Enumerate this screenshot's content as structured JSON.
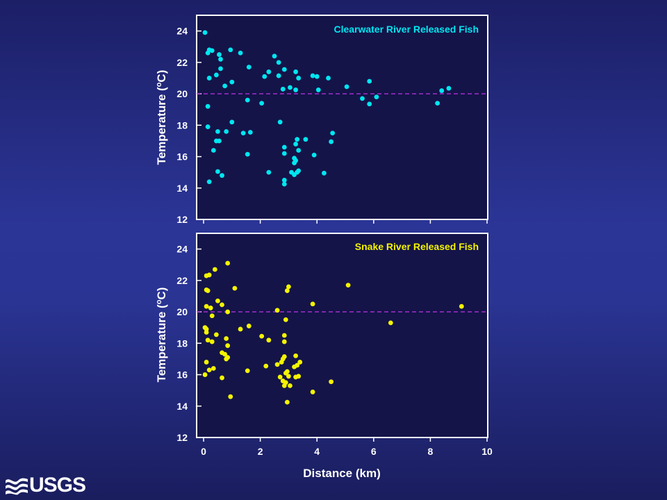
{
  "logo": {
    "text": "USGS",
    "icon": "usgs-wave-icon"
  },
  "colors": {
    "plot_bg": "#141449",
    "axis": "#ffffff",
    "threshold": "#b02fd8",
    "clearwater": "#00e6f0",
    "snake": "#f4f400"
  },
  "chart_data": [
    {
      "type": "scatter",
      "title": "Clearwater River Released Fish",
      "xlabel": "",
      "ylabel": "Temperature (",
      "ylabel_sup": "o",
      "ylabel_end": "C)",
      "xlim": [
        0,
        10
      ],
      "ylim": [
        12,
        25
      ],
      "xticks": [
        0,
        2,
        4,
        6,
        8,
        10
      ],
      "yticks": [
        12,
        14,
        16,
        18,
        20,
        22,
        24
      ],
      "xtick_labels_shown": false,
      "grid": false,
      "threshold": 20,
      "series": [
        {
          "color": "#00e6f0",
          "points": [
            [
              0.05,
              23.9
            ],
            [
              0.15,
              22.6
            ],
            [
              0.2,
              22.8
            ],
            [
              0.3,
              22.75
            ],
            [
              0.55,
              22.5
            ],
            [
              0.95,
              22.8
            ],
            [
              1.3,
              22.6
            ],
            [
              2.5,
              22.4
            ],
            [
              0.6,
              22.2
            ],
            [
              2.65,
              22.0
            ],
            [
              0.45,
              21.2
            ],
            [
              0.2,
              21.0
            ],
            [
              0.6,
              21.6
            ],
            [
              1.6,
              21.7
            ],
            [
              2.3,
              21.4
            ],
            [
              2.85,
              21.55
            ],
            [
              3.25,
              21.4
            ],
            [
              2.15,
              21.1
            ],
            [
              2.65,
              21.15
            ],
            [
              3.85,
              21.15
            ],
            [
              4.0,
              21.1
            ],
            [
              4.4,
              21.0
            ],
            [
              3.35,
              21.0
            ],
            [
              1.0,
              20.75
            ],
            [
              0.75,
              20.5
            ],
            [
              2.8,
              20.3
            ],
            [
              3.05,
              20.4
            ],
            [
              3.25,
              20.25
            ],
            [
              4.05,
              20.25
            ],
            [
              5.05,
              20.45
            ],
            [
              5.85,
              20.8
            ],
            [
              0.15,
              19.2
            ],
            [
              1.55,
              19.6
            ],
            [
              2.05,
              19.4
            ],
            [
              5.6,
              19.7
            ],
            [
              5.85,
              19.35
            ],
            [
              6.1,
              19.8
            ],
            [
              8.25,
              19.4
            ],
            [
              8.4,
              20.2
            ],
            [
              8.65,
              20.35
            ],
            [
              0.15,
              17.9
            ],
            [
              0.5,
              17.6
            ],
            [
              0.8,
              17.6
            ],
            [
              1.0,
              18.2
            ],
            [
              1.4,
              17.5
            ],
            [
              1.65,
              17.55
            ],
            [
              2.7,
              18.2
            ],
            [
              4.55,
              17.5
            ],
            [
              0.45,
              17.0
            ],
            [
              0.55,
              17.0
            ],
            [
              3.6,
              17.1
            ],
            [
              3.3,
              17.1
            ],
            [
              3.25,
              16.8
            ],
            [
              3.35,
              16.4
            ],
            [
              2.85,
              16.6
            ],
            [
              2.85,
              16.2
            ],
            [
              4.5,
              16.95
            ],
            [
              0.35,
              16.4
            ],
            [
              1.55,
              16.15
            ],
            [
              3.2,
              15.9
            ],
            [
              3.2,
              15.6
            ],
            [
              3.25,
              15.75
            ],
            [
              3.9,
              16.1
            ],
            [
              0.5,
              15.05
            ],
            [
              0.65,
              14.8
            ],
            [
              0.2,
              14.4
            ],
            [
              2.3,
              15.0
            ],
            [
              3.1,
              15.0
            ],
            [
              3.3,
              15.0
            ],
            [
              3.35,
              15.1
            ],
            [
              3.2,
              14.85
            ],
            [
              2.85,
              14.5
            ],
            [
              2.85,
              14.25
            ],
            [
              4.25,
              14.95
            ]
          ]
        }
      ]
    },
    {
      "type": "scatter",
      "title": "Snake River Released Fish",
      "xlabel": "Distance (km)",
      "ylabel": "Temperature (",
      "ylabel_sup": "o",
      "ylabel_end": "C)",
      "xlim": [
        0,
        10
      ],
      "ylim": [
        12,
        25
      ],
      "xticks": [
        0,
        2,
        4,
        6,
        8,
        10
      ],
      "yticks": [
        12,
        14,
        16,
        18,
        20,
        22,
        24
      ],
      "xtick_labels_shown": true,
      "grid": false,
      "threshold": 20,
      "series": [
        {
          "color": "#f4f400",
          "points": [
            [
              0.85,
              23.1
            ],
            [
              0.4,
              22.7
            ],
            [
              0.1,
              22.3
            ],
            [
              0.2,
              22.35
            ],
            [
              0.1,
              21.4
            ],
            [
              0.15,
              21.35
            ],
            [
              1.1,
              21.5
            ],
            [
              3.0,
              21.6
            ],
            [
              2.95,
              21.35
            ],
            [
              5.1,
              21.7
            ],
            [
              0.5,
              20.7
            ],
            [
              0.65,
              20.45
            ],
            [
              0.1,
              20.35
            ],
            [
              0.25,
              20.25
            ],
            [
              2.6,
              20.1
            ],
            [
              3.85,
              20.5
            ],
            [
              9.1,
              20.35
            ],
            [
              0.85,
              20.0
            ],
            [
              0.3,
              19.75
            ],
            [
              0.05,
              19.0
            ],
            [
              0.1,
              18.9
            ],
            [
              0.1,
              18.7
            ],
            [
              2.9,
              19.5
            ],
            [
              6.6,
              19.3
            ],
            [
              1.3,
              18.9
            ],
            [
              1.6,
              19.1
            ],
            [
              2.05,
              18.45
            ],
            [
              2.3,
              18.2
            ],
            [
              2.85,
              18.5
            ],
            [
              2.85,
              18.1
            ],
            [
              0.3,
              18.1
            ],
            [
              0.45,
              18.55
            ],
            [
              0.15,
              18.2
            ],
            [
              0.8,
              18.3
            ],
            [
              0.85,
              17.85
            ],
            [
              0.65,
              17.4
            ],
            [
              0.75,
              17.3
            ],
            [
              0.8,
              17.0
            ],
            [
              0.85,
              17.1
            ],
            [
              0.1,
              16.8
            ],
            [
              0.2,
              16.3
            ],
            [
              0.35,
              16.4
            ],
            [
              0.65,
              15.8
            ],
            [
              1.55,
              16.25
            ],
            [
              2.2,
              16.55
            ],
            [
              2.6,
              16.65
            ],
            [
              2.75,
              16.8
            ],
            [
              2.8,
              17.0
            ],
            [
              2.85,
              17.15
            ],
            [
              3.25,
              17.2
            ],
            [
              3.4,
              16.8
            ],
            [
              3.2,
              16.5
            ],
            [
              3.3,
              16.6
            ],
            [
              0.05,
              16.0
            ],
            [
              2.7,
              15.85
            ],
            [
              2.8,
              15.6
            ],
            [
              2.9,
              15.5
            ],
            [
              2.85,
              15.3
            ],
            [
              3.0,
              15.9
            ],
            [
              3.25,
              15.85
            ],
            [
              3.35,
              15.9
            ],
            [
              3.05,
              15.3
            ],
            [
              2.9,
              16.1
            ],
            [
              2.95,
              16.2
            ],
            [
              4.5,
              15.55
            ],
            [
              3.85,
              14.9
            ],
            [
              0.95,
              14.6
            ],
            [
              2.95,
              14.25
            ]
          ]
        }
      ]
    }
  ]
}
